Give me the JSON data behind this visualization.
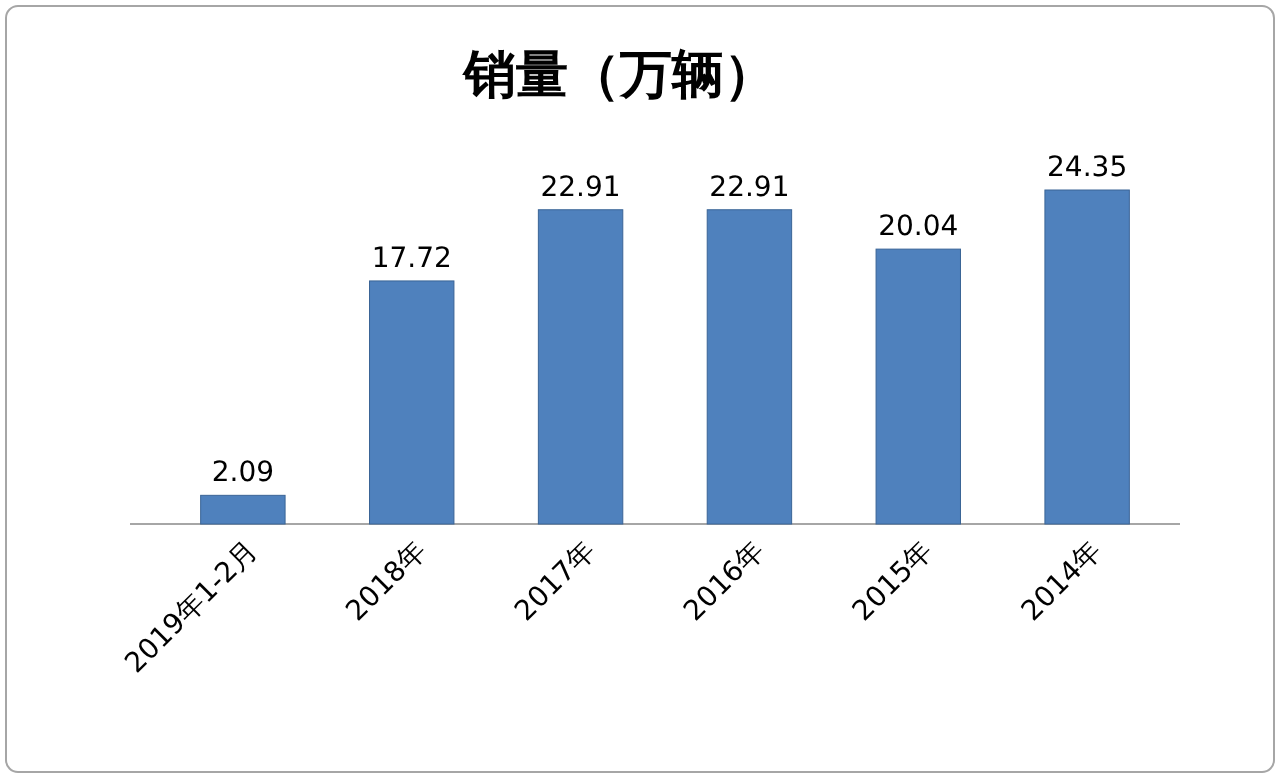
{
  "chart_data": {
    "type": "bar",
    "title": "销量（万辆）",
    "categories": [
      "2019年1-2月",
      "2018年",
      "2017年",
      "2016年",
      "2015年",
      "2014年"
    ],
    "values": [
      2.09,
      17.72,
      22.91,
      22.91,
      20.04,
      24.35
    ],
    "color": "#4f81bd",
    "data_labels": true
  }
}
